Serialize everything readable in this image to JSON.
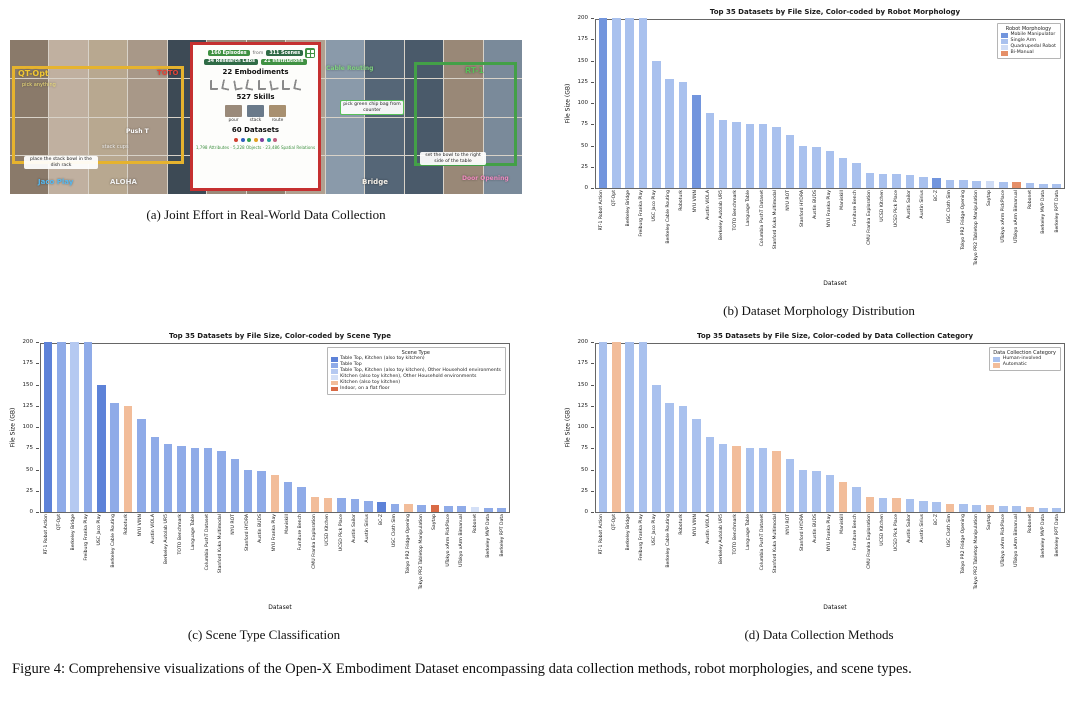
{
  "figure": {
    "caption": "Figure 4: Comprehensive visualizations of the Open-X Embodiment Dataset encompassing data collection methods, robot morphologies, and scene types.",
    "subcaptions": {
      "a": "(a) Joint Effort in Real-World Data Collection",
      "b": "(b) Dataset Morphology Distribution",
      "c": "(c) Scene Type Classification",
      "d": "(d) Data Collection Methods"
    }
  },
  "collage": {
    "labels": {
      "qt_opt": "QT-Opt",
      "toto": "TOTO",
      "cable_routing": "Cable Routing",
      "rt1": "RT-1",
      "jaco_play": "Jaco Play",
      "aloha": "ALOHA",
      "push_t": "Push T",
      "bridge": "Bridge",
      "door_opening": "Door Opening",
      "pick_anything": "pick anything",
      "stack_cups": "stack cups"
    },
    "chips": {
      "place_bowl": "place the stack bowl in the dish rack",
      "pick_bag": "pick green chip bag from counter",
      "set_bowl": "set the bowl to the right side of the table"
    },
    "stats": {
      "episodes": "160 Episodes",
      "from_word": "from",
      "scenes": "311 Scenes",
      "research_labs": "34 Research Labs",
      "institutions": "21 Institutions",
      "embodiments": "22 Embodiments",
      "skills": "527 Skills",
      "skill_examples": [
        "pour",
        "stack",
        "route"
      ],
      "datasets": "60 Datasets",
      "footer": "1,798 Attributes · 5,228 Objects · 23,486 Spatial Relations"
    },
    "accent_colors": {
      "qt_opt": "#f2c832",
      "toto": "#e04438",
      "rt1": "#58c05a",
      "jaco_play": "#55b8f0",
      "door_opening": "#f08ac0",
      "cable_routing": "#7fd37f",
      "stats_green": "#3f9142",
      "box_red": "#c53030",
      "box_yellow": "#e6b32e",
      "box_green": "#43a047"
    },
    "tile_colors": [
      "#8a7a6a",
      "#b0a090",
      "#6a7a8a",
      "#9a8a7a",
      "#7a8a9a",
      "#a89888",
      "#4a5a6a",
      "#c0b0a0",
      "#8a9aaa",
      "#7a6a5a",
      "#90806e",
      "#667788",
      "#3d4a55",
      "#998877",
      "#b8a890",
      "#556677"
    ],
    "skill_tile_colors": [
      "#9a8a7a",
      "#6a7a8a",
      "#a89070"
    ],
    "logo_dot_colors": [
      "#d04030",
      "#3060c0",
      "#30a050",
      "#e0a020",
      "#8040a0",
      "#20a0a0",
      "#c06080"
    ]
  },
  "chart_data": {
    "type": "bar",
    "categories": [
      "RT-1 Robot Action",
      "QT-Opt",
      "Berkeley Bridge",
      "Freiburg Franka Play",
      "USC Jaco Play",
      "Berkeley Cable Routing",
      "Roboturk",
      "NYU VINN",
      "Austin VIOLA",
      "Berkeley Autolab UR5",
      "TOTO Benchmark",
      "Language Table",
      "Columbia PushT Dataset",
      "Stanford Kuka Multimodal",
      "NYU ROT",
      "Stanford HYDRA",
      "Austin BUDS",
      "NYU Franka Play",
      "Maniskill",
      "Furniture Bench",
      "CMU Franka Exploration",
      "UCSD Kitchen",
      "UCSD Pick Place",
      "Austin Sailor",
      "Austin Sirius",
      "BC-Z",
      "USC Cloth Sim",
      "Tokyo PR2 Fridge Opening",
      "Tokyo PR2 Tabletop Manipulation",
      "Saytap",
      "UTokyo xArm PickPlace",
      "UTokyo xArm Bimanual",
      "Robonet",
      "Berkeley MVP Data",
      "Berkeley RPT Data"
    ],
    "values": [
      200,
      200,
      200,
      200,
      150,
      128,
      125,
      110,
      88,
      80,
      78,
      75,
      75,
      72,
      62,
      50,
      48,
      43,
      35,
      30,
      18,
      17,
      16,
      15,
      13,
      12,
      10,
      9,
      8,
      8,
      7,
      7,
      6,
      5,
      5
    ],
    "ylabel": "File Size (GB)",
    "xlabel": "Dataset",
    "ylim": [
      0,
      200
    ],
    "yticks": [
      0,
      25,
      50,
      75,
      100,
      125,
      150,
      175,
      200
    ],
    "charts": [
      {
        "id": "morphology",
        "title": "Top 35 Datasets by File Size, Color-coded by Robot Morphology",
        "legend_title": "Robot Morphology",
        "legend": [
          {
            "label": "Mobile Manipulator",
            "color": "#7295dd"
          },
          {
            "label": "Single Arm",
            "color": "#a9c1ee"
          },
          {
            "label": "Quadrupedal Robot",
            "color": "#cfdcf5"
          },
          {
            "label": "Bi-Manual",
            "color": "#e58f68"
          }
        ],
        "bar_legend_index": [
          0,
          1,
          1,
          1,
          1,
          1,
          1,
          0,
          1,
          1,
          1,
          1,
          1,
          1,
          1,
          1,
          1,
          1,
          1,
          1,
          1,
          1,
          1,
          1,
          1,
          0,
          1,
          1,
          1,
          2,
          1,
          3,
          1,
          1,
          1
        ]
      },
      {
        "id": "scene_type",
        "title": "Top 35 Datasets by File Size, Color-coded by Scene Type",
        "legend_title": "Scene Type",
        "legend": [
          {
            "label": "Table Top, Kitchen (also toy kitchen)",
            "color": "#5d82d8"
          },
          {
            "label": "Table Top",
            "color": "#8fabe8"
          },
          {
            "label": "Table Top, Kitchen (also toy kitchen), Other Household environments",
            "color": "#b5c9f1"
          },
          {
            "label": "Kitchen (also toy kitchen), Other Household environments",
            "color": "#d4e0f7"
          },
          {
            "label": "Kitchen (also toy kitchen)",
            "color": "#f2bd9a"
          },
          {
            "label": "Indoor, on a flat floor",
            "color": "#d96a45"
          }
        ],
        "bar_legend_index": [
          0,
          1,
          2,
          1,
          0,
          1,
          4,
          1,
          1,
          1,
          1,
          1,
          1,
          1,
          1,
          1,
          1,
          4,
          1,
          1,
          4,
          4,
          1,
          1,
          1,
          0,
          1,
          4,
          1,
          5,
          1,
          1,
          3,
          1,
          1
        ]
      },
      {
        "id": "data_collection",
        "title": "Top 35 Datasets by File Size, Color-coded by Data Collection Category",
        "legend_title": "Data Collection Category",
        "legend": [
          {
            "label": "Human-involved",
            "color": "#a9c1ee"
          },
          {
            "label": "Automatic",
            "color": "#f2bd9a"
          }
        ],
        "bar_legend_index": [
          0,
          1,
          0,
          0,
          0,
          0,
          0,
          0,
          0,
          0,
          1,
          0,
          0,
          1,
          0,
          0,
          0,
          0,
          1,
          0,
          1,
          0,
          1,
          0,
          0,
          0,
          1,
          0,
          0,
          1,
          0,
          0,
          1,
          0,
          0
        ]
      }
    ]
  }
}
